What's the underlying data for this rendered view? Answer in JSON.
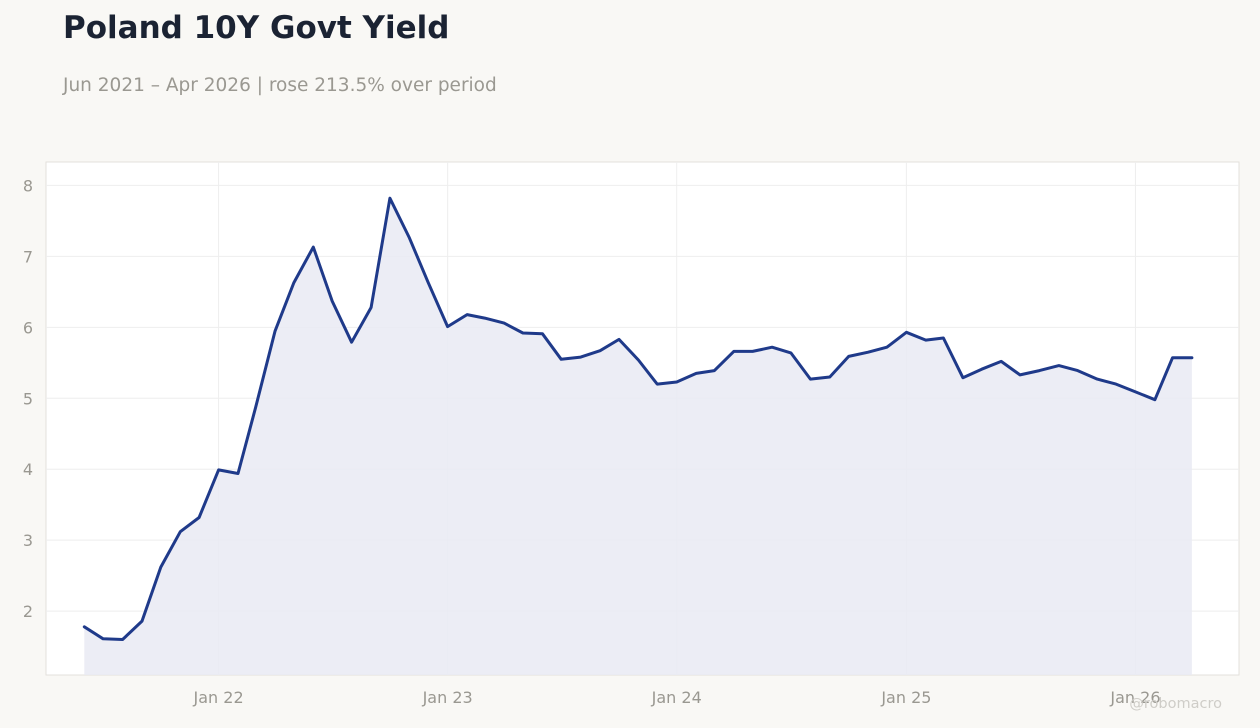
{
  "header": {
    "title": "Poland 10Y Govt Yield",
    "subtitle": "Jun 2021 – Apr 2026 | rose 213.5% over period"
  },
  "watermark": "@robomacro",
  "colors": {
    "background": "#f9f8f5",
    "plot_background": "#ffffff",
    "line": "#1f3a8a",
    "area_fill": "#e9eaf3",
    "grid": "#eeeeee",
    "tick_text": "#9a9891",
    "title_text": "#1b2333"
  },
  "chart_data": {
    "type": "area",
    "title": "Poland 10Y Govt Yield",
    "subtitle": "Jun 2021 – Apr 2026 | rose 213.5% over period",
    "xlabel": "",
    "ylabel": "",
    "x_ticks": [
      "Jan 22",
      "Jan 23",
      "Jan 24",
      "Jan 25",
      "Jan 26"
    ],
    "y_ticks": [
      2,
      3,
      4,
      5,
      6,
      7,
      8
    ],
    "xlim": [
      "2021-04-01",
      "2026-06-15"
    ],
    "ylim": [
      1.1,
      8.33
    ],
    "grid": true,
    "legend": "none",
    "series": [
      {
        "x": [
          "2021-06-01",
          "2021-07-01",
          "2021-08-01",
          "2021-09-01",
          "2021-10-01",
          "2021-11-01",
          "2021-12-01",
          "2022-01-01",
          "2022-02-01",
          "2022-03-01",
          "2022-04-01",
          "2022-05-01",
          "2022-06-01",
          "2022-07-01",
          "2022-08-01",
          "2022-09-01",
          "2022-10-01",
          "2022-11-01",
          "2022-12-01",
          "2023-01-01",
          "2023-02-01",
          "2023-03-01",
          "2023-04-01",
          "2023-05-01",
          "2023-06-01",
          "2023-07-01",
          "2023-08-01",
          "2023-09-01",
          "2023-10-01",
          "2023-11-01",
          "2023-12-01",
          "2024-01-01",
          "2024-02-01",
          "2024-03-01",
          "2024-04-01",
          "2024-05-01",
          "2024-06-01",
          "2024-07-01",
          "2024-08-01",
          "2024-09-01",
          "2024-10-01",
          "2024-11-01",
          "2024-12-01",
          "2025-01-01",
          "2025-02-01",
          "2025-03-01",
          "2025-04-01",
          "2025-05-01",
          "2025-06-01",
          "2025-07-01",
          "2025-08-01",
          "2025-09-01",
          "2025-10-01",
          "2025-11-01",
          "2025-12-01",
          "2026-01-01",
          "2026-02-01",
          "2026-03-01",
          "2026-04-01"
        ],
        "values": [
          1.78,
          1.61,
          1.6,
          1.86,
          2.62,
          3.12,
          3.32,
          3.99,
          3.94,
          4.87,
          5.95,
          6.63,
          7.13,
          6.37,
          5.79,
          6.28,
          7.82,
          7.26,
          6.63,
          6.01,
          6.18,
          6.13,
          6.06,
          5.92,
          5.91,
          5.55,
          5.58,
          5.67,
          5.83,
          5.54,
          5.2,
          5.23,
          5.35,
          5.39,
          5.66,
          5.66,
          5.72,
          5.64,
          5.27,
          5.3,
          5.59,
          5.65,
          5.72,
          5.93,
          5.82,
          5.85,
          5.29,
          5.41,
          5.52,
          5.33,
          5.39,
          5.46,
          5.39,
          5.27,
          5.2,
          5.09,
          4.98,
          5.57,
          5.57
        ]
      }
    ]
  }
}
